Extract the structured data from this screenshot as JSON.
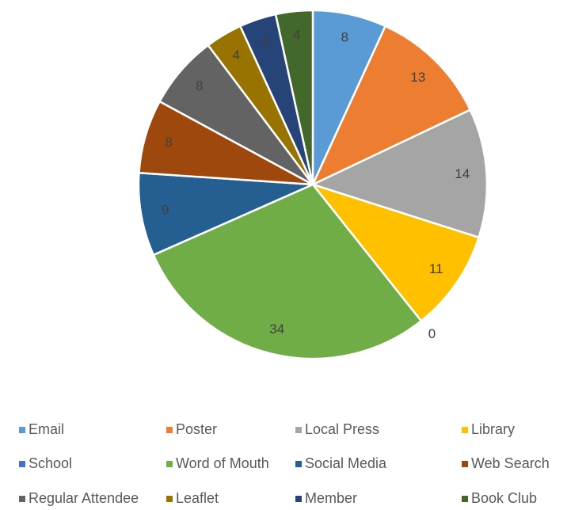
{
  "chart_data": {
    "type": "pie",
    "categories": [
      "Email",
      "Poster",
      "Local Press",
      "Library",
      "School",
      "Word of Mouth",
      "Social Media",
      "Web Search",
      "Regular Attendee",
      "Leaflet",
      "Member",
      "Book Club"
    ],
    "values": [
      8,
      13,
      14,
      11,
      0,
      34,
      9,
      8,
      8,
      4,
      4,
      4
    ],
    "colors": [
      "#5b9bd5",
      "#ed7d31",
      "#a5a5a5",
      "#ffc000",
      "#4472c4",
      "#70ad47",
      "#255e91",
      "#9e480e",
      "#636363",
      "#997300",
      "#264478",
      "#43682b"
    ],
    "legend": "bottom"
  }
}
